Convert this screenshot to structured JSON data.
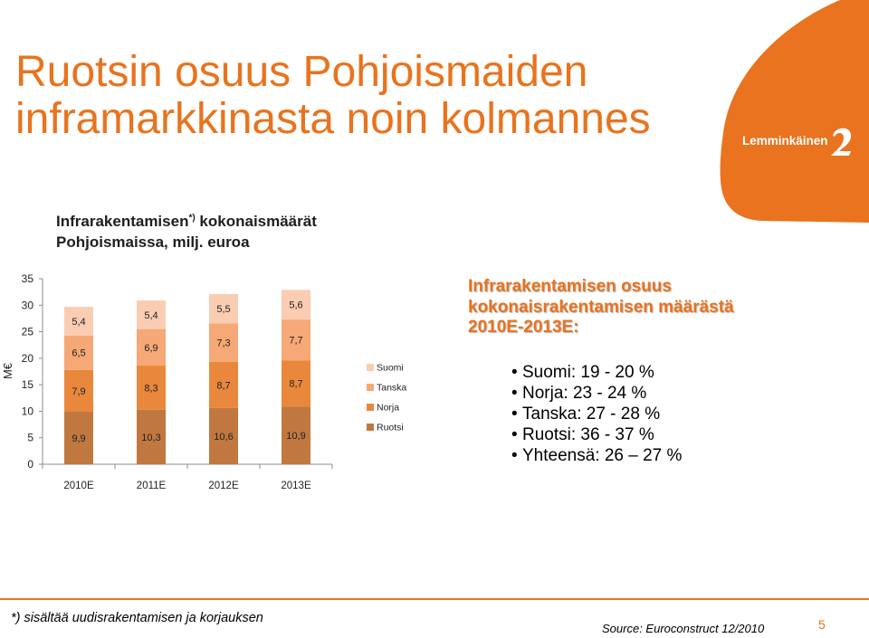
{
  "slide": {
    "title_line1": "Ruotsin osuus Pohjoismaiden",
    "title_line2": "inframarkkinasta noin kolmannes",
    "logo": {
      "text": "Lemminkäinen",
      "icon": "swoosh-icon"
    },
    "footnote": "*) sisältää uudisrakentamisen ja korjauksen",
    "source": "Source: Euroconstruct 12/2010",
    "page_number": "5",
    "accent_color": "#e9731e"
  },
  "info": {
    "heading": [
      "Infrarakentamisen osuus",
      "kokonaisrakentamisen määrästä",
      "2010E-2013E:"
    ],
    "bullets": [
      "Suomi: 19 - 20 %",
      "Norja: 23 - 24 %",
      "Tanska: 27 - 28 %",
      "Ruotsi: 36 - 37 %",
      "Yhteensä: 26 – 27 %"
    ]
  },
  "chart_data": {
    "type": "bar",
    "stacked": true,
    "title": {
      "main": "Infrarakentamisen",
      "superscript": "*)",
      "rest": "kokonaismäärät",
      "line2": "Pohjoismaissa, milj. euroa"
    },
    "ylabel": "M€",
    "ylim": [
      0,
      35
    ],
    "yticks": [
      0,
      5,
      10,
      15,
      20,
      25,
      30,
      35
    ],
    "grid": false,
    "legend_position": "right",
    "categories": [
      "2010E",
      "2011E",
      "2012E",
      "2013E"
    ],
    "series": [
      {
        "name": "Ruotsi",
        "color": "#c07840",
        "values": [
          9.9,
          10.3,
          10.6,
          10.9
        ],
        "labels": [
          "9,9",
          "10,3",
          "10,6",
          "10,9"
        ]
      },
      {
        "name": "Norja",
        "color": "#e9883c",
        "values": [
          7.9,
          8.3,
          8.7,
          8.7
        ],
        "labels": [
          "7,9",
          "8,3",
          "8,7",
          "8,7"
        ]
      },
      {
        "name": "Tanska",
        "color": "#f6a876",
        "values": [
          6.5,
          6.9,
          7.3,
          7.7
        ],
        "labels": [
          "6,5",
          "6,9",
          "7,3",
          "7,7"
        ]
      },
      {
        "name": "Suomi",
        "color": "#facdb3",
        "values": [
          5.4,
          5.4,
          5.5,
          5.6
        ],
        "labels": [
          "5,4",
          "5,4",
          "5,5",
          "5,6"
        ]
      }
    ]
  }
}
